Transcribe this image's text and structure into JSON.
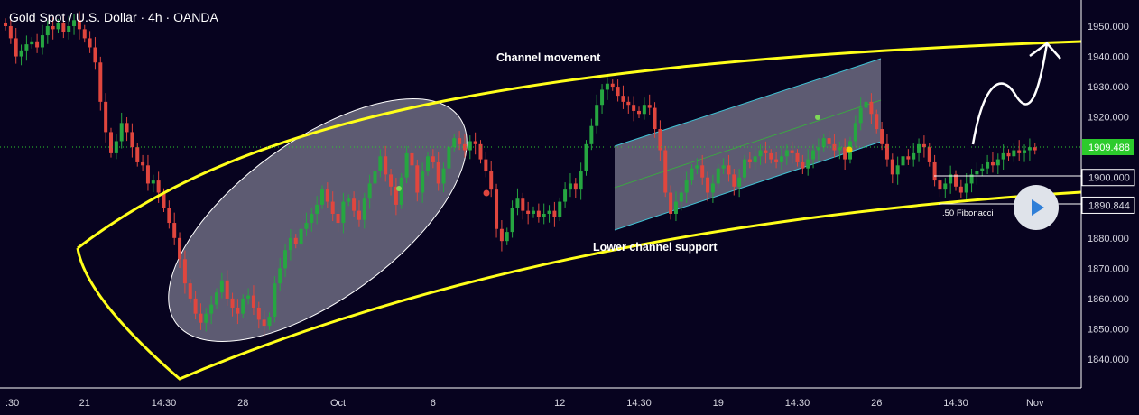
{
  "header": {
    "title": "Gold Spot / U.S. Dollar · 4h · OANDA"
  },
  "colors": {
    "background": "#07031f",
    "up": "#26a641",
    "down": "#e0463e",
    "channel": "#ffff1a",
    "price_line": "#2ccb2c",
    "shaded_region": "#c8c8d8"
  },
  "play_button": {
    "icon": "play-icon"
  },
  "chart_data": {
    "type": "candlestick",
    "title": "Gold Spot / U.S. Dollar · 4h · OANDA",
    "y_ticks": [
      "1950.000",
      "1940.000",
      "1930.000",
      "1920.000",
      "1910.000",
      "1900.000",
      "1890.000",
      "1880.000",
      "1870.000",
      "1860.000",
      "1850.000",
      "1840.000"
    ],
    "y_tick_values": [
      1950,
      1940,
      1930,
      1920,
      1910,
      1900,
      1890,
      1880,
      1870,
      1860,
      1850,
      1840
    ],
    "ylim": [
      1831,
      1953
    ],
    "x_ticks": [
      {
        "label": ":30",
        "bar": 0
      },
      {
        "label": "21",
        "bar": 15
      },
      {
        "label": "14:30",
        "bar": 30
      },
      {
        "label": "28",
        "bar": 45
      },
      {
        "label": "Oct",
        "bar": 63
      },
      {
        "label": "6",
        "bar": 81
      },
      {
        "label": "12",
        "bar": 105
      },
      {
        "label": "14:30",
        "bar": 120
      },
      {
        "label": "19",
        "bar": 135
      },
      {
        "label": "14:30",
        "bar": 150
      },
      {
        "label": "26",
        "bar": 165
      },
      {
        "label": "14:30",
        "bar": 180
      },
      {
        "label": "Nov",
        "bar": 195
      }
    ],
    "current_price": {
      "value": 1909.488,
      "label": "1909.488"
    },
    "price_labels": [
      {
        "value": 1900.0,
        "label": "1900.000"
      },
      {
        "value": 1890.844,
        "label": "1890.844"
      }
    ],
    "annotations": {
      "channel_movement": "Channel movement",
      "lower_channel_support": "Lower channel support",
      "fibonacci": ".50 Fibonacci"
    },
    "closes": [
      1950,
      1946,
      1940,
      1942,
      1944,
      1945,
      1943,
      1947,
      1950,
      1949,
      1951,
      1948,
      1950,
      1952,
      1949,
      1946,
      1943,
      1938,
      1925,
      1915,
      1908,
      1912,
      1918,
      1915,
      1910,
      1905,
      1904,
      1898,
      1899,
      1895,
      1890,
      1885,
      1880,
      1873,
      1865,
      1860,
      1855,
      1852,
      1855,
      1858,
      1862,
      1866,
      1860,
      1857,
      1855,
      1860,
      1861,
      1857,
      1853,
      1851,
      1854,
      1865,
      1870,
      1876,
      1880,
      1878,
      1883,
      1885,
      1888,
      1891,
      1896,
      1892,
      1888,
      1885,
      1892,
      1893,
      1889,
      1886,
      1893,
      1898,
      1902,
      1907,
      1901,
      1897,
      1891,
      1900,
      1908,
      1904,
      1895,
      1902,
      1907,
      1905,
      1898,
      1903,
      1910,
      1913,
      1911,
      1909,
      1912,
      1911,
      1906,
      1902,
      1896,
      1883,
      1879,
      1882,
      1890,
      1893,
      1889,
      1888,
      1889,
      1887,
      1888,
      1889,
      1887,
      1892,
      1896,
      1898,
      1896,
      1902,
      1911,
      1917,
      1924,
      1929,
      1931,
      1930,
      1927,
      1925,
      1924,
      1922,
      1921,
      1924,
      1923,
      1916,
      1909,
      1895,
      1888,
      1892,
      1895,
      1899,
      1903,
      1904,
      1900,
      1895,
      1898,
      1903,
      1904,
      1901,
      1897,
      1900,
      1906,
      1905,
      1907,
      1909,
      1908,
      1906,
      1905,
      1907,
      1909,
      1908,
      1905,
      1903,
      1906,
      1909,
      1910,
      1913,
      1911,
      1909,
      1910,
      1906,
      1912,
      1918,
      1923,
      1925,
      1921,
      1916,
      1911,
      1906,
      1901,
      1904,
      1907,
      1906,
      1908,
      1911,
      1910,
      1905,
      1899,
      1896,
      1898,
      1901,
      1897,
      1895,
      1898,
      1901,
      1902,
      1903,
      1905,
      1904,
      1906,
      1908,
      1907,
      1909,
      1908,
      1909,
      1910,
      1909
    ]
  }
}
